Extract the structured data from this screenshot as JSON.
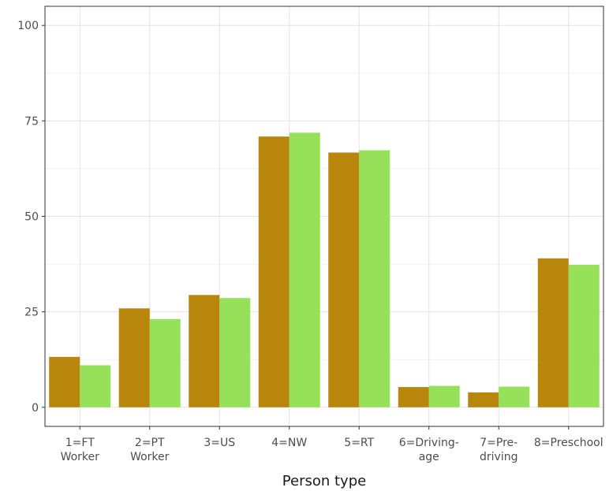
{
  "chart_data": {
    "type": "bar",
    "xlabel": "Person type",
    "ylabel": "",
    "ylim": [
      -5,
      105
    ],
    "yticks": [
      0,
      25,
      50,
      75,
      100
    ],
    "grid": true,
    "legend": "none",
    "categories": [
      [
        "1=FT",
        "Worker"
      ],
      [
        "2=PT",
        "Worker"
      ],
      [
        "3=US"
      ],
      [
        "4=NW"
      ],
      [
        "5=RT"
      ],
      [
        "6=Driving-",
        "age"
      ],
      [
        "7=Pre-",
        "driving"
      ],
      [
        "8=Preschool"
      ]
    ],
    "series": [
      {
        "color": "#b8860b",
        "values": [
          13.2,
          25.9,
          29.4,
          70.9,
          66.7,
          5.3,
          3.9,
          39.0
        ]
      },
      {
        "color": "#96e05a",
        "values": [
          11.0,
          23.1,
          28.6,
          71.9,
          67.3,
          5.6,
          5.4,
          37.3
        ]
      }
    ]
  }
}
